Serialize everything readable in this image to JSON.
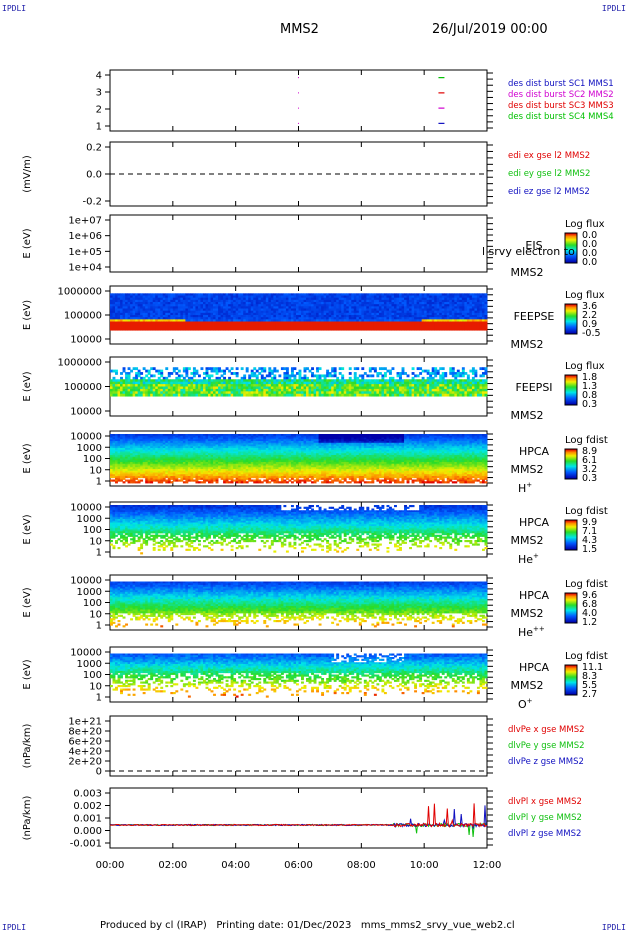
{
  "header": {
    "corner_tl": "IPDLI",
    "corner_tr": "IPDLI",
    "corner_bl": "IPDLI",
    "corner_br": "IPDLI",
    "spacecraft": "MMS2",
    "date": "26/Jul/2019 00:00"
  },
  "footer": {
    "text": "Produced by cl (IRAP)   Printing date: 01/Dec/2023   mms_mms2_srvy_vue_web2.cl"
  },
  "colors": {
    "mms1": "#1010c0",
    "mms2": "#d000d0",
    "mms3": "#e00000",
    "mms4": "#00c000",
    "red": "#e00000",
    "green": "#10c010",
    "blue": "#1010c0"
  },
  "chart_data": [
    {
      "type": "scatter",
      "panel": "burst",
      "ylabel": "",
      "ylim": [
        0.5,
        4.5
      ],
      "yticks": [
        "4",
        "3",
        "2",
        "1"
      ],
      "legend": [
        {
          "label": "des dist burst SC1 MMS1",
          "color": "#1010c0"
        },
        {
          "label": "des dist burst SC2 MMS2",
          "color": "#d000d0"
        },
        {
          "label": "des dist burst SC3 MMS3",
          "color": "#e00000"
        },
        {
          "label": "des dist burst SC4 MMS4",
          "color": "#00c000"
        }
      ],
      "marks": [
        {
          "x_hours": 10.55,
          "y": 4,
          "color": "#00c000"
        },
        {
          "x_hours": 10.55,
          "y": 3,
          "color": "#e00000"
        },
        {
          "x_hours": 10.55,
          "y": 2,
          "color": "#d000d0"
        },
        {
          "x_hours": 10.55,
          "y": 1,
          "color": "#1010c0"
        }
      ]
    },
    {
      "type": "line",
      "panel": "edi",
      "ylabel": "(mV/m)",
      "ylim": [
        -0.3,
        0.3
      ],
      "yticks": [
        "0.2",
        "0.0",
        "-0.2"
      ],
      "legend": [
        {
          "label": "edi ex gse l2 MMS2",
          "color": "#e00000"
        },
        {
          "label": "edi ey gse l2 MMS2",
          "color": "#10c010"
        },
        {
          "label": "edi ez gse l2 MMS2",
          "color": "#1010c0"
        }
      ]
    },
    {
      "type": "heatmap",
      "panel": "eis",
      "ylabel": "E (eV)",
      "yticks": [
        "1e+07",
        "1e+06",
        "1e+05",
        "1e+04"
      ],
      "instrument": "EIS",
      "spacecraft": "MMS2",
      "overlay_text": "l srvy electron to",
      "cbar_title": "Log flux",
      "cbar_ticks": [
        "0.0",
        "0.0",
        "0.0",
        "0.0"
      ]
    },
    {
      "type": "heatmap",
      "panel": "feeps-e",
      "ylabel": "E (eV)",
      "yticks": [
        "1000000",
        "100000",
        "10000"
      ],
      "instrument": "FEEPSE",
      "spacecraft": "MMS2",
      "cbar_title": "Log flux",
      "cbar_ticks": [
        "3.6",
        "2.2",
        "0.9",
        "-0.5"
      ]
    },
    {
      "type": "heatmap",
      "panel": "feeps-i",
      "ylabel": "E (eV)",
      "yticks": [
        "1000000",
        "100000",
        "10000"
      ],
      "instrument": "FEEPSI",
      "spacecraft": "MMS2",
      "cbar_title": "Log flux",
      "cbar_ticks": [
        "1.8",
        "1.3",
        "0.8",
        "0.3"
      ]
    },
    {
      "type": "heatmap",
      "panel": "hpca-h",
      "ylabel": "E (eV)",
      "yticks": [
        "10000",
        "1000",
        "100",
        "10",
        "1"
      ],
      "instrument": "HPCA",
      "spacecraft": "MMS2",
      "species": "H",
      "species_sup": "+",
      "cbar_title": "Log fdist",
      "cbar_ticks": [
        "8.9",
        "6.1",
        "3.2",
        "0.3"
      ]
    },
    {
      "type": "heatmap",
      "panel": "hpca-he",
      "ylabel": "E (eV)",
      "yticks": [
        "10000",
        "1000",
        "100",
        "10",
        "1"
      ],
      "instrument": "HPCA",
      "spacecraft": "MMS2",
      "species": "He",
      "species_sup": "+",
      "cbar_title": "Log fdist",
      "cbar_ticks": [
        "9.9",
        "7.1",
        "4.3",
        "1.5"
      ]
    },
    {
      "type": "heatmap",
      "panel": "hpca-hepp",
      "ylabel": "E (eV)",
      "yticks": [
        "10000",
        "1000",
        "100",
        "10",
        "1"
      ],
      "instrument": "HPCA",
      "spacecraft": "MMS2",
      "species": "He",
      "species_sup": "++",
      "cbar_title": "Log fdist",
      "cbar_ticks": [
        "9.6",
        "6.8",
        "4.0",
        "1.2"
      ]
    },
    {
      "type": "heatmap",
      "panel": "hpca-o",
      "ylabel": "E (eV)",
      "yticks": [
        "10000",
        "1000",
        "100",
        "10",
        "1"
      ],
      "instrument": "HPCA",
      "spacecraft": "MMS2",
      "species": "O",
      "species_sup": "+",
      "cbar_title": "Log fdist",
      "cbar_ticks": [
        "11.1",
        "8.3",
        "5.5",
        "2.7"
      ]
    },
    {
      "type": "line",
      "panel": "divpe",
      "ylabel": "(nPa/km)",
      "ylim": [
        0,
        1.1e+21
      ],
      "yticks": [
        "1e+21",
        "8e+20",
        "6e+20",
        "4e+20",
        "2e+20",
        "0"
      ],
      "legend": [
        {
          "label": "dlvPe x gse MMS2",
          "color": "#e00000"
        },
        {
          "label": "dlvPe y gse MMS2",
          "color": "#10c010"
        },
        {
          "label": "dlvPe z gse MMS2",
          "color": "#1010c0"
        }
      ]
    },
    {
      "type": "line",
      "panel": "divpi",
      "ylabel": "(nPa/km)",
      "ylim": [
        -0.0018,
        0.0032
      ],
      "yticks": [
        "0.003",
        "0.002",
        "0.001",
        "0.000",
        "-0.001"
      ],
      "legend": [
        {
          "label": "dlvPl x gse MMS2",
          "color": "#e00000"
        },
        {
          "label": "dlvPl y gse MMS2",
          "color": "#10c010"
        },
        {
          "label": "dlvPl z gse MMS2",
          "color": "#1010c0"
        }
      ]
    }
  ],
  "x_axis": {
    "xlim_hours": [
      0,
      12
    ],
    "ticks": [
      "00:00",
      "02:00",
      "04:00",
      "06:00",
      "08:00",
      "10:00",
      "12:00"
    ]
  }
}
